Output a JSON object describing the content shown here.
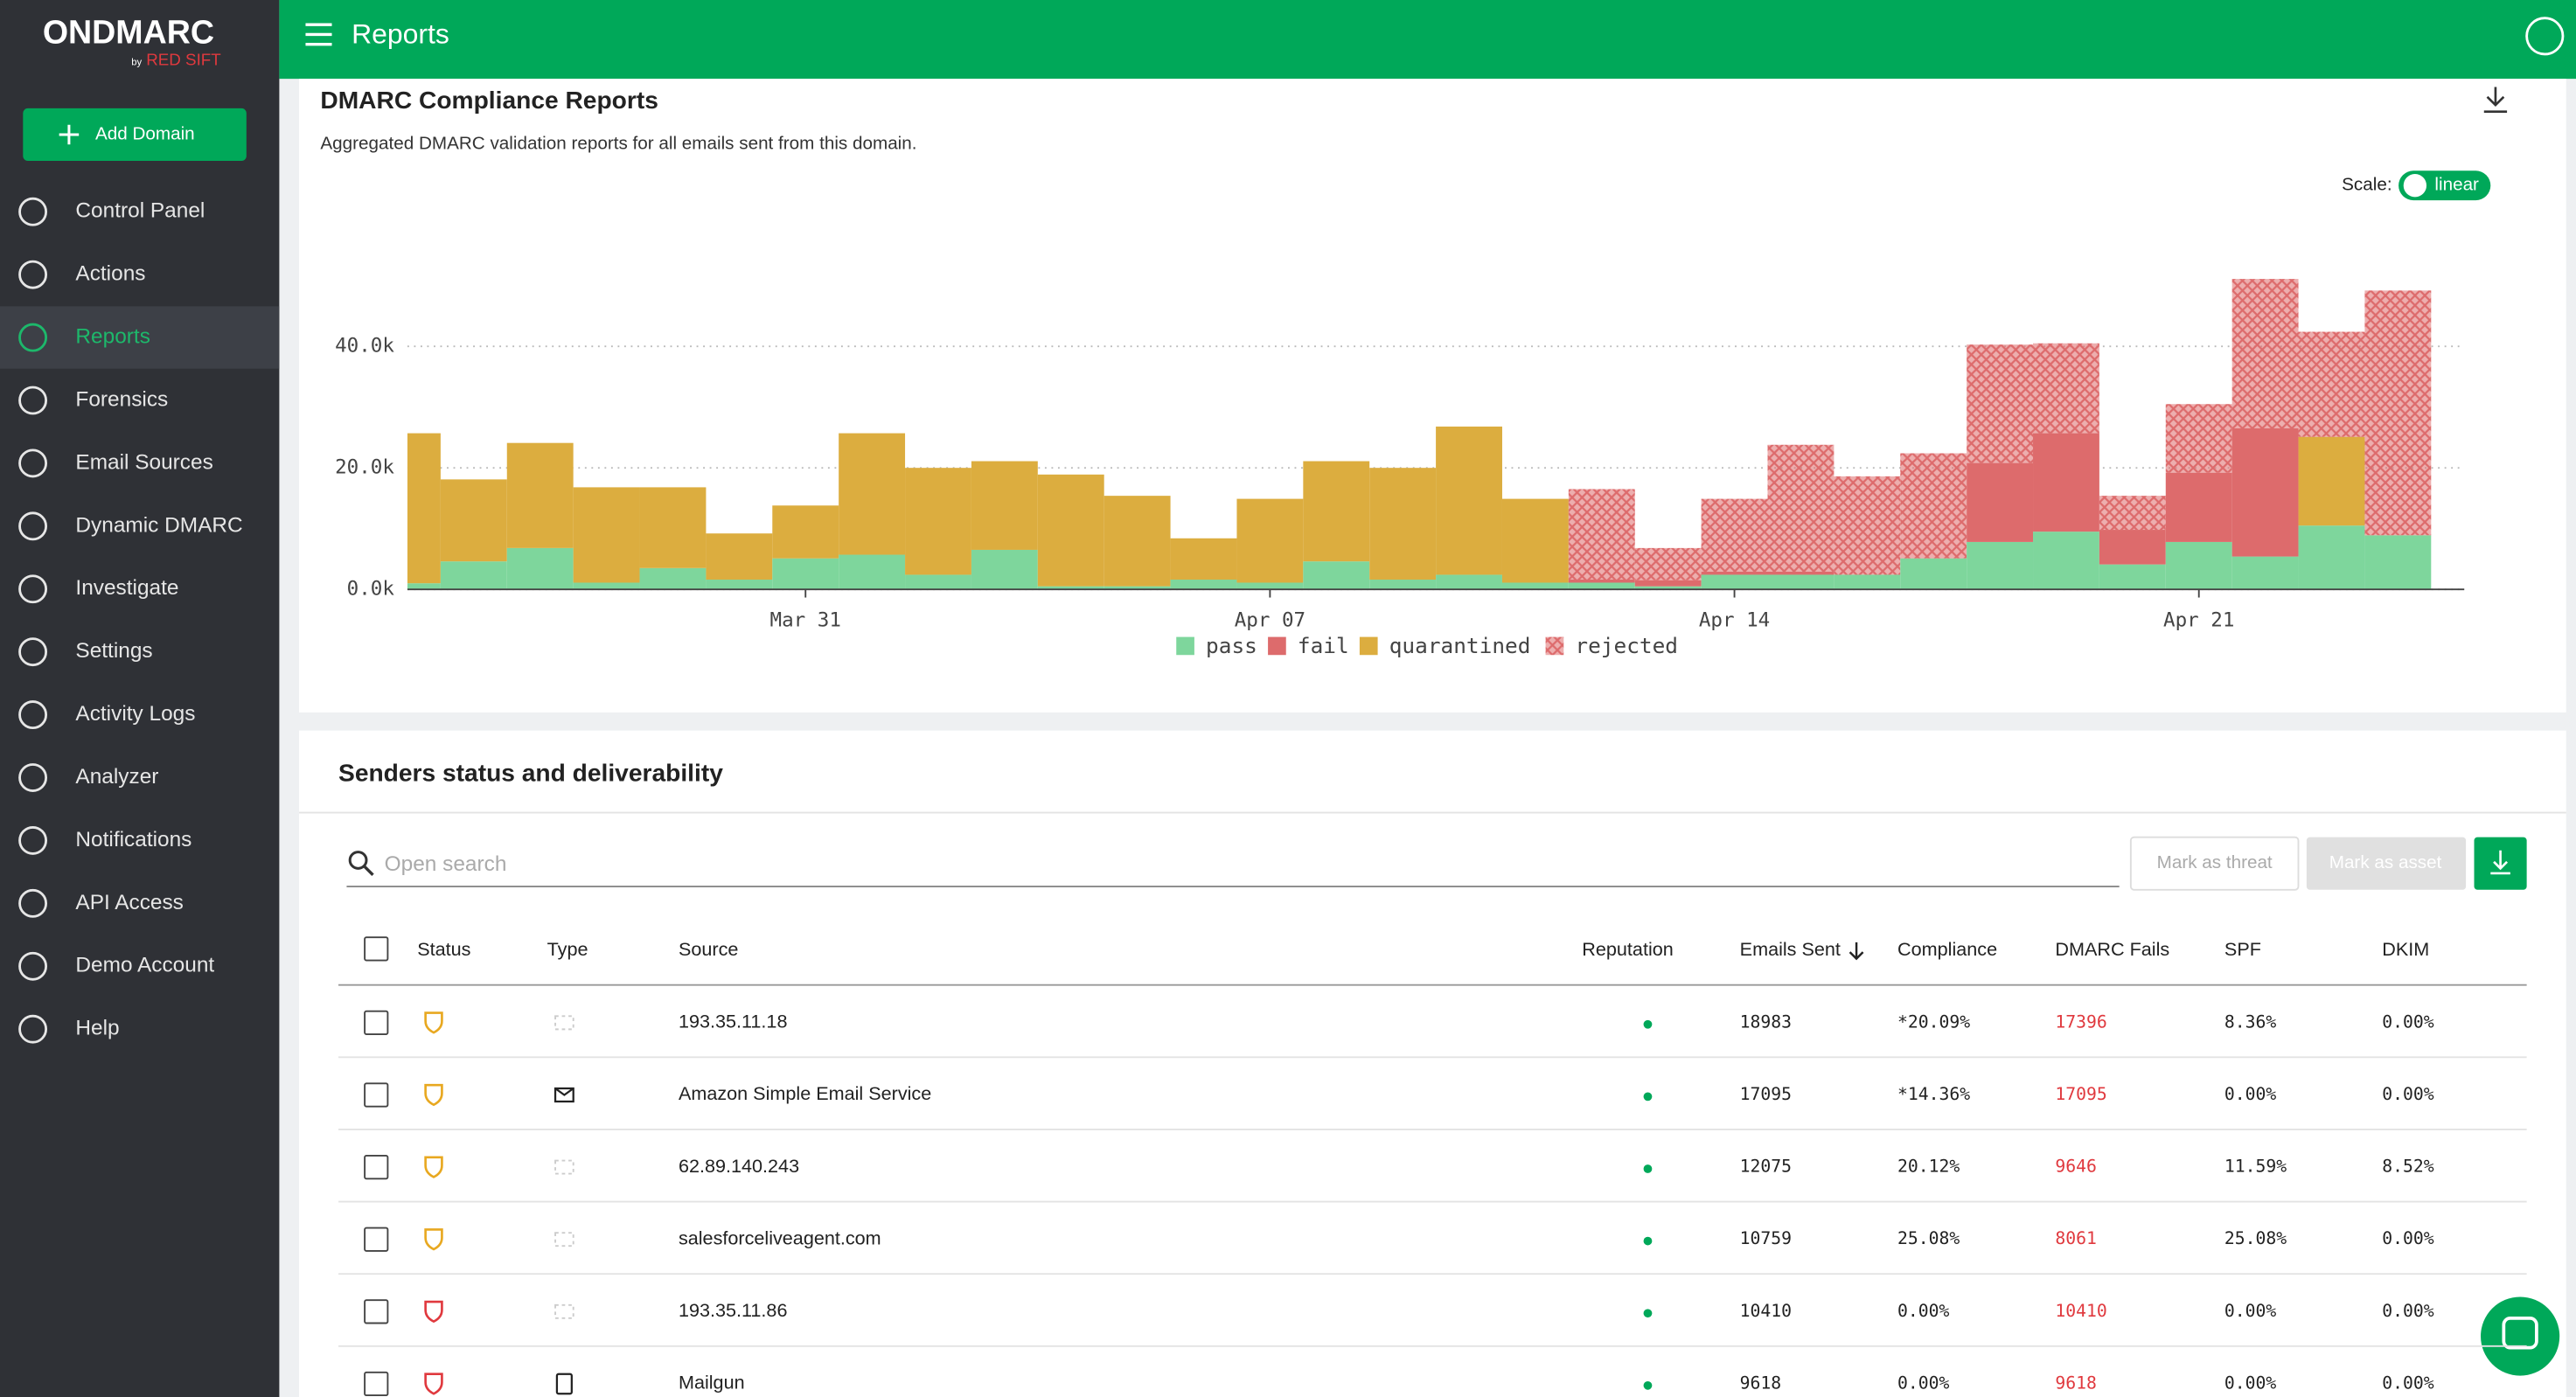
{
  "app": {
    "logo": "ONDMARC",
    "logo_by": "by",
    "logo_brand": "RED SIFT",
    "add_domain": "Add Domain",
    "nav": [
      "Control Panel",
      "Actions",
      "Reports",
      "Forensics",
      "Email Sources",
      "Dynamic DMARC",
      "Investigate",
      "Settings",
      "Activity Logs",
      "Analyzer",
      "Notifications",
      "API Access",
      "Demo Account",
      "Help"
    ],
    "nav_active": 2
  },
  "header": {
    "title": "Reports"
  },
  "report": {
    "title": "DMARC Compliance Reports",
    "subtitle": "Aggregated DMARC validation reports for all emails sent from this domain.",
    "scale_label": "Scale:",
    "scale_value": "linear"
  },
  "chart_data": {
    "type": "bar",
    "stacked": true,
    "categories": [
      "Mar 25",
      "Mar 26",
      "Mar 27",
      "Mar 28",
      "Mar 29",
      "Mar 30",
      "Mar 31",
      "Apr 01",
      "Apr 02",
      "Apr 03",
      "Apr 04",
      "Apr 05",
      "Apr 06",
      "Apr 07",
      "Apr 08",
      "Apr 09",
      "Apr 10",
      "Apr 11",
      "Apr 12",
      "Apr 13",
      "Apr 14",
      "Apr 15",
      "Apr 16",
      "Apr 17",
      "Apr 18",
      "Apr 19",
      "Apr 20",
      "Apr 21",
      "Apr 22",
      "Apr 23",
      "Apr 24"
    ],
    "series": [
      {
        "name": "pass",
        "color": "#7ed69c",
        "values": [
          1000,
          4600,
          6800,
          1100,
          3500,
          1600,
          5100,
          5700,
          2400,
          6500,
          500,
          500,
          1600,
          1100,
          4600,
          1600,
          2400,
          1100,
          1100,
          500,
          2400,
          2400,
          2400,
          5100,
          7800,
          9500,
          4100,
          7800,
          5400,
          10500,
          8900
        ]
      },
      {
        "name": "fail",
        "color": "#dd6b6c",
        "values": [
          0,
          0,
          0,
          0,
          0,
          0,
          0,
          0,
          0,
          0,
          0,
          0,
          0,
          0,
          0,
          0,
          0,
          0,
          500,
          1000,
          500,
          500,
          0,
          0,
          13000,
          16200,
          5700,
          11400,
          21100,
          0,
          0
        ]
      },
      {
        "name": "quarantined",
        "color": "#dcad3f",
        "values": [
          24700,
          13500,
          17300,
          15700,
          13300,
          7600,
          8700,
          20000,
          17600,
          14600,
          18400,
          14900,
          6800,
          13800,
          16500,
          18400,
          24400,
          13800,
          0,
          0,
          0,
          0,
          0,
          0,
          0,
          0,
          0,
          0,
          0,
          14600,
          0
        ]
      },
      {
        "name": "rejected",
        "color": "#dd6b6c",
        "pattern": "crosshatch",
        "values": [
          0,
          0,
          0,
          0,
          0,
          0,
          0,
          0,
          0,
          0,
          0,
          0,
          0,
          0,
          0,
          0,
          0,
          0,
          14900,
          5300,
          12000,
          20900,
          16200,
          17300,
          19500,
          14800,
          5600,
          11300,
          24600,
          17300,
          40300
        ]
      }
    ],
    "ylim": [
      0,
      52000
    ],
    "yticks": [
      {
        "value": 0,
        "label": "0.0k"
      },
      {
        "value": 20000,
        "label": "20.0k"
      },
      {
        "value": 40000,
        "label": "40.0k"
      }
    ],
    "xticks": [
      "Mar 31",
      "Apr 07",
      "Apr 14",
      "Apr 21"
    ],
    "grid": true
  },
  "senders": {
    "title": "Senders status and deliverability",
    "search_placeholder": "Open search",
    "mark_threat": "Mark as threat",
    "mark_asset": "Mark as asset",
    "columns": [
      "Status",
      "Type",
      "Source",
      "Reputation",
      "Emails Sent",
      "Compliance",
      "DMARC Fails",
      "SPF",
      "DKIM"
    ],
    "rows": [
      {
        "status_color": "#e8a820",
        "source": "193.35.11.18",
        "emails_sent": 18983,
        "compliance": "*20.09%",
        "dmarc_fails": 17396,
        "spf": "8.36%",
        "dkim": "0.00%"
      },
      {
        "status_color": "#e8a820",
        "source": "Amazon Simple Email Service",
        "emails_sent": 17095,
        "compliance": "*14.36%",
        "dmarc_fails": 17095,
        "spf": "0.00%",
        "dkim": "0.00%"
      },
      {
        "status_color": "#e8a820",
        "source": "62.89.140.243",
        "emails_sent": 12075,
        "compliance": "20.12%",
        "dmarc_fails": 9646,
        "spf": "11.59%",
        "dkim": "8.52%"
      },
      {
        "status_color": "#e8a820",
        "source": "salesforceliveagent.com",
        "emails_sent": 10759,
        "compliance": "25.08%",
        "dmarc_fails": 8061,
        "spf": "25.08%",
        "dkim": "0.00%"
      },
      {
        "status_color": "#e0393e",
        "source": "193.35.11.86",
        "emails_sent": 10410,
        "compliance": "0.00%",
        "dmarc_fails": 10410,
        "spf": "0.00%",
        "dkim": "0.00%"
      },
      {
        "status_color": "#e0393e",
        "source": "Mailgun",
        "emails_sent": 9618,
        "compliance": "0.00%",
        "dmarc_fails": 9618,
        "spf": "0.00%",
        "dkim": "0.00%"
      }
    ]
  }
}
